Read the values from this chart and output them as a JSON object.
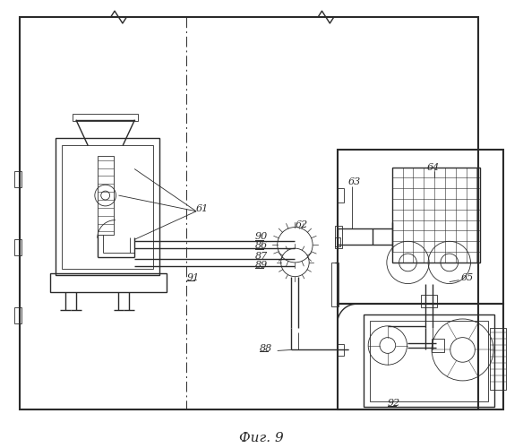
{
  "bg_color": "#ffffff",
  "line_color": "#2a2a2a",
  "fig_width": 5.84,
  "fig_height": 5.0,
  "caption": "Фиг. 9",
  "label_size": 8.0
}
